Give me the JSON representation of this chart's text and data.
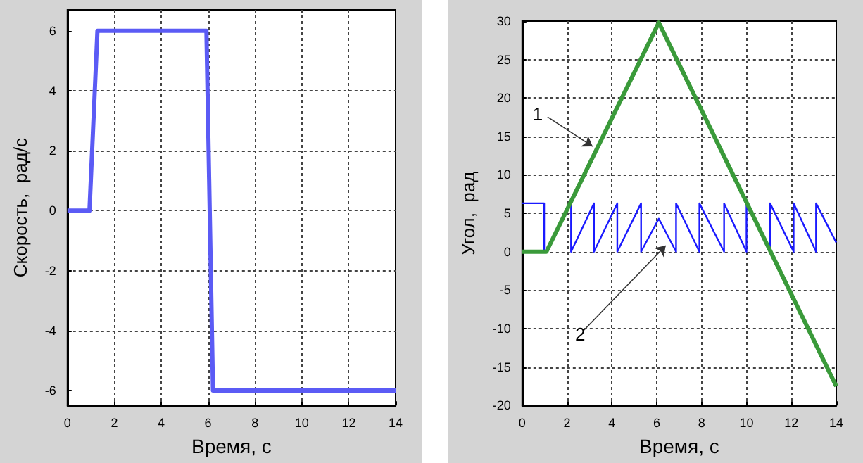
{
  "chart_data": [
    {
      "type": "line",
      "xlabel": "Время, с",
      "ylabel": "Скорость,  рад/с",
      "xlim": [
        0,
        14
      ],
      "xticks": [
        0,
        2,
        4,
        6,
        8,
        10,
        12,
        14
      ],
      "ylim": [
        -6.5,
        6.7
      ],
      "yticks": [
        -6,
        -4,
        -2,
        0,
        2,
        4,
        6
      ],
      "grid": true,
      "marker": "none",
      "line_style": "solid",
      "series": [
        {
          "color": "#5b5bf5",
          "x": [
            0,
            0.94,
            1.28,
            5.93,
            6.21,
            14
          ],
          "values": [
            0,
            0,
            6,
            6,
            -6,
            -6
          ]
        }
      ]
    },
    {
      "type": "line",
      "xlabel": "Время, с",
      "ylabel": "Угол,  рад",
      "xlim": [
        0,
        14
      ],
      "xticks": [
        0,
        2,
        4,
        6,
        8,
        10,
        12,
        14
      ],
      "ylim": [
        -20,
        30
      ],
      "yticks": [
        -20,
        -15,
        -10,
        -5,
        0,
        5,
        10,
        15,
        20,
        25,
        30
      ],
      "grid": true,
      "marker": "none",
      "line_style": "solid",
      "annotations": [
        {
          "text": "1",
          "x": 3.14,
          "y": 13.7
        },
        {
          "text": "2",
          "x": 6.4,
          "y": 0.8
        }
      ],
      "series": [
        {
          "color": "#1a1aff",
          "x": [
            0,
            0.98,
            0.98,
            1.08,
            2.18,
            2.18,
            3.2,
            3.2,
            4.24,
            4.24,
            5.3,
            5.3,
            6.09,
            6.86,
            6.86,
            7.9,
            7.9,
            9.0,
            9.0,
            10.0,
            10.0,
            11.05,
            11.05,
            12.1,
            12.1,
            13.1,
            13.1,
            14
          ],
          "values": [
            6.3,
            6.3,
            0,
            0,
            6.3,
            0,
            6.3,
            0,
            6.3,
            0,
            6.3,
            0,
            4.3,
            0,
            6.3,
            0,
            6.3,
            0,
            6.3,
            0,
            6.3,
            0,
            6.3,
            0,
            6.3,
            0,
            6.3,
            1.2
          ]
        },
        {
          "color": "#3a9a3a",
          "x": [
            0,
            1.08,
            6.09,
            14
          ],
          "values": [
            0,
            0,
            29.8,
            -17.5
          ]
        }
      ]
    }
  ]
}
